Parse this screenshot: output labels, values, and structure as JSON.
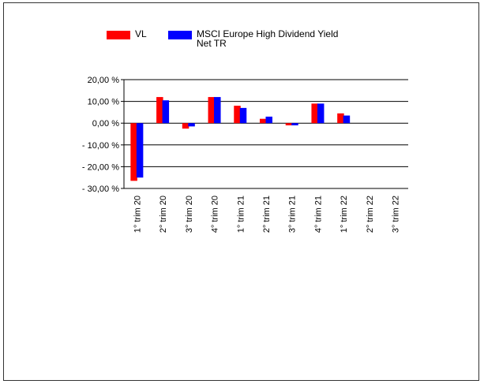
{
  "chart_data": {
    "type": "bar",
    "categories": [
      "1° trim 20",
      "2° trim 20",
      "3° trim 20",
      "4° trim 20",
      "1° trim 21",
      "2° trim 21",
      "3° trim 21",
      "4° trim 21",
      "1° trim 22",
      "2° trim 22",
      "3° trim 22"
    ],
    "series": [
      {
        "name": "VL",
        "color": "#ff0000",
        "values": [
          -26.5,
          12.0,
          -2.5,
          12.0,
          8.0,
          2.0,
          -1.0,
          9.0,
          4.5,
          null,
          null
        ]
      },
      {
        "name": "MSCI Europe High Dividend Yield Net TR",
        "color": "#0000ff",
        "values": [
          -25.0,
          10.5,
          -1.5,
          12.0,
          7.0,
          3.0,
          -1.0,
          9.0,
          3.5,
          null,
          null
        ]
      }
    ],
    "yticks": [
      "20,00 %",
      "10,00 %",
      "0,00 %",
      "- 10,00 %",
      "- 20,00 %",
      "- 30,00 %"
    ],
    "ylim": [
      -30,
      20
    ],
    "grid": true,
    "legend": "top"
  }
}
